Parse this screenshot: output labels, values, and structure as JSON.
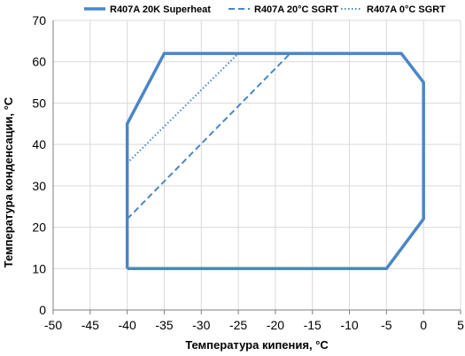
{
  "chart_data": {
    "type": "line",
    "xlabel": "Температура кипения, °C",
    "ylabel": "Температура конденсации, °C",
    "xlim": [
      -50,
      5
    ],
    "ylim": [
      0,
      70
    ],
    "x_ticks": [
      -50,
      -45,
      -40,
      -35,
      -30,
      -25,
      -20,
      -15,
      -10,
      -5,
      0,
      5
    ],
    "y_ticks": [
      0,
      10,
      20,
      30,
      40,
      50,
      60,
      70
    ],
    "grid": "both",
    "legend_placement": "top",
    "series": [
      {
        "name": "R407A 20K Superheat",
        "style": "solid",
        "color": "#4a86c8",
        "points": [
          [
            -40,
            10
          ],
          [
            -5,
            10
          ],
          [
            0,
            22
          ],
          [
            0,
            55
          ],
          [
            -3,
            62
          ],
          [
            -35,
            62
          ],
          [
            -40,
            45
          ],
          [
            -40,
            10
          ]
        ]
      },
      {
        "name": "R407A 20°C SGRT",
        "style": "dashed",
        "color": "#4a86c8",
        "points": [
          [
            -40,
            22
          ],
          [
            -18,
            62
          ]
        ]
      },
      {
        "name": "R407A 0°C SGRT",
        "style": "dotted",
        "color": "#4a86c8",
        "points": [
          [
            -40,
            35.5
          ],
          [
            -25,
            62
          ]
        ]
      }
    ]
  }
}
